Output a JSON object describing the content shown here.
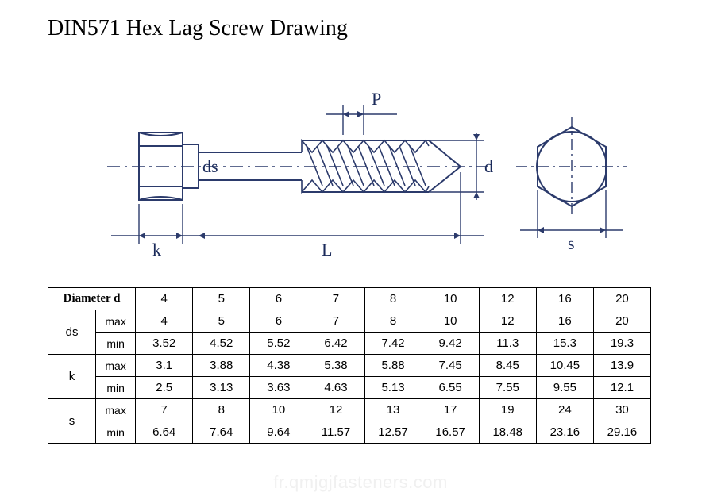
{
  "title": "DIN571 Hex Lag Screw Drawing",
  "watermark": "fr.qmjgjfasteners.com",
  "drawing": {
    "labels": {
      "P": "P",
      "d": "d",
      "ds": "ds",
      "k": "k",
      "L": "L",
      "s": "s"
    },
    "colors": {
      "stroke": "#2b3a6b",
      "text": "#1a2a5a",
      "bg": "#ffffff"
    }
  },
  "table": {
    "header_label": "Diameter d",
    "minmax": {
      "max": "max",
      "min": "min"
    },
    "diameters": [
      "4",
      "5",
      "6",
      "7",
      "8",
      "10",
      "12",
      "16",
      "20"
    ],
    "groups": [
      {
        "name": "ds",
        "max": [
          "4",
          "5",
          "6",
          "7",
          "8",
          "10",
          "12",
          "16",
          "20"
        ],
        "min": [
          "3.52",
          "4.52",
          "5.52",
          "6.42",
          "7.42",
          "9.42",
          "11.3",
          "15.3",
          "19.3"
        ]
      },
      {
        "name": "k",
        "max": [
          "3.1",
          "3.88",
          "4.38",
          "5.38",
          "5.88",
          "7.45",
          "8.45",
          "10.45",
          "13.9"
        ],
        "min": [
          "2.5",
          "3.13",
          "3.63",
          "4.63",
          "5.13",
          "6.55",
          "7.55",
          "9.55",
          "12.1"
        ]
      },
      {
        "name": "s",
        "max": [
          "7",
          "8",
          "10",
          "12",
          "13",
          "17",
          "19",
          "24",
          "30"
        ],
        "min": [
          "6.64",
          "7.64",
          "9.64",
          "11.57",
          "12.57",
          "16.57",
          "18.48",
          "23.16",
          "29.16"
        ]
      }
    ]
  }
}
